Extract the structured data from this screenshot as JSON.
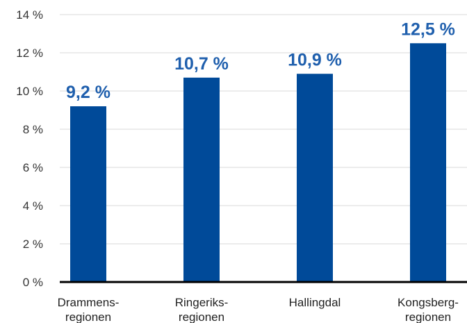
{
  "chart_data": {
    "type": "bar",
    "categories": [
      [
        "Drammens-",
        "regionen"
      ],
      [
        "Ringeriks-",
        "regionen"
      ],
      [
        "Hallingdal"
      ],
      [
        "Kongsberg-",
        "regionen"
      ]
    ],
    "values": [
      9.2,
      10.7,
      10.9,
      12.5
    ],
    "data_labels": [
      "9,2 %",
      "10,7 %",
      "10,9 %",
      "12,5 %"
    ],
    "y_ticks": [
      0,
      2,
      4,
      6,
      8,
      10,
      12,
      14
    ],
    "y_tick_labels": [
      "0 %",
      "2 %",
      "4 %",
      "6 %",
      "8 %",
      "10 %",
      "12 %",
      "14 %"
    ],
    "ylim": [
      0,
      14
    ],
    "grid": true,
    "legend": "none",
    "title": "",
    "xlabel": "",
    "ylabel": ""
  },
  "colors": {
    "bar": "#004a99",
    "data_label": "#1f5fad",
    "grid": "#d9d9d9",
    "axis": "#000000"
  }
}
